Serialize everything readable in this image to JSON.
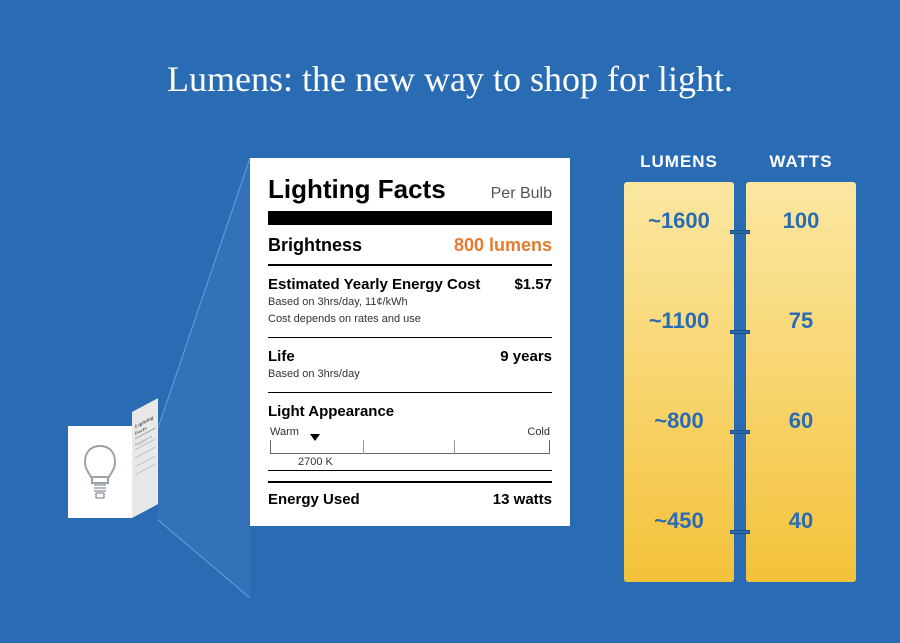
{
  "colors": {
    "background": "#2a6cb4",
    "accent": "#e67a2e",
    "card_bg": "#ffffff",
    "column_gradient_top": "#fbe7a2",
    "column_gradient_bottom": "#f4c23a",
    "column_text": "#2a6cb4",
    "tick_bg": "#2a6cb4"
  },
  "title": "Lumens: the new way to shop for light.",
  "facts": {
    "heading": "Lighting Facts",
    "per": "Per Bulb",
    "brightness_label": "Brightness",
    "brightness_value": "800 lumens",
    "cost_label": "Estimated Yearly Energy Cost",
    "cost_value": "$1.57",
    "cost_fine1": "Based on 3hrs/day, 11¢/kWh",
    "cost_fine2": "Cost depends on rates and use",
    "life_label": "Life",
    "life_value": "9 years",
    "life_fine": "Based on 3hrs/day",
    "appearance_label": "Light Appearance",
    "appearance_warm": "Warm",
    "appearance_cold": "Cold",
    "appearance_value": "2700 K",
    "appearance_marker_pct": 16,
    "energy_label": "Energy Used",
    "energy_value": "13 watts"
  },
  "comparison": {
    "header_left": "LUMENS",
    "header_right": "WATTS",
    "rows": [
      {
        "lumens": "~1600",
        "watts": "100",
        "pos_pct": 13
      },
      {
        "lumens": "~1100",
        "watts": "75",
        "pos_pct": 38
      },
      {
        "lumens": "~800",
        "watts": "60",
        "pos_pct": 63
      },
      {
        "lumens": "~450",
        "watts": "40",
        "pos_pct": 88
      }
    ]
  }
}
